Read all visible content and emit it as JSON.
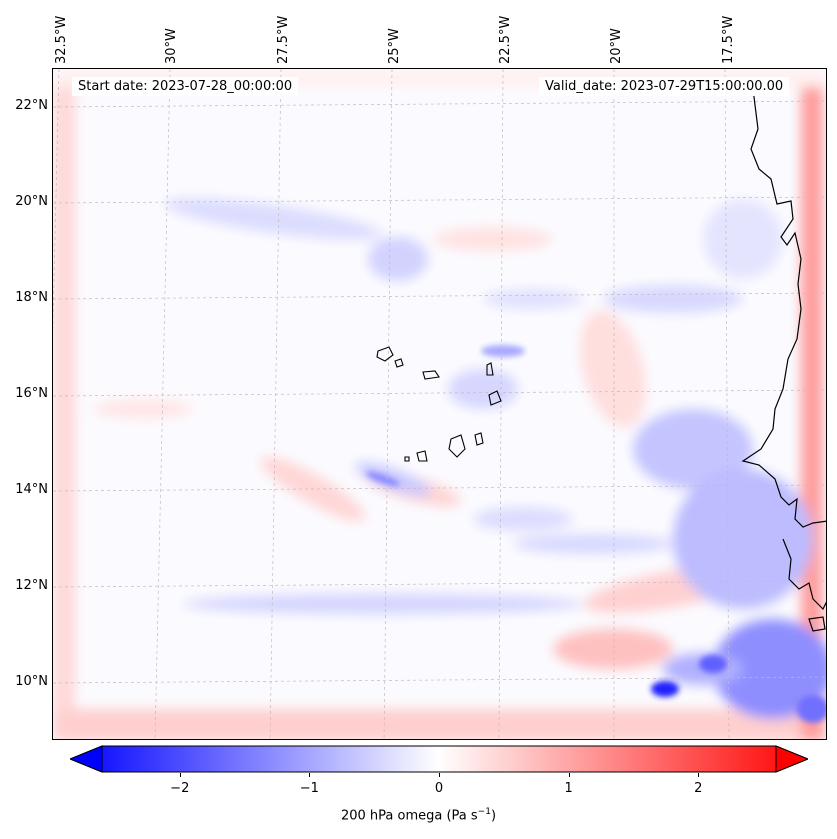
{
  "lon_labels": [
    "32.5°W",
    "30°W",
    "27.5°W",
    "25°W",
    "22.5°W",
    "20°W",
    "17.5°W"
  ],
  "lat_labels": [
    "22°N",
    "20°N",
    "18°N",
    "16°N",
    "14°N",
    "12°N",
    "10°N"
  ],
  "start_date": "Start date: 2023-07-28_00:00:00",
  "valid_date": "Valid_date: 2023-07-29T15:00:00.00",
  "colorbar": {
    "ticks": [
      "−2",
      "−1",
      "0",
      "1",
      "2"
    ],
    "tick_values": [
      -2,
      -1,
      0,
      1,
      2
    ],
    "min": -2.6,
    "max": 2.6,
    "label_prefix": "200 hPa omega (Pa s",
    "label_sup": "−1",
    "label_suffix": ")",
    "negative_color": "#0000ff",
    "neutral_color": "#ffffff",
    "positive_color": "#ff0000"
  },
  "colors": {
    "coastline": "#000000",
    "gridline": "#c8b8b8"
  }
}
